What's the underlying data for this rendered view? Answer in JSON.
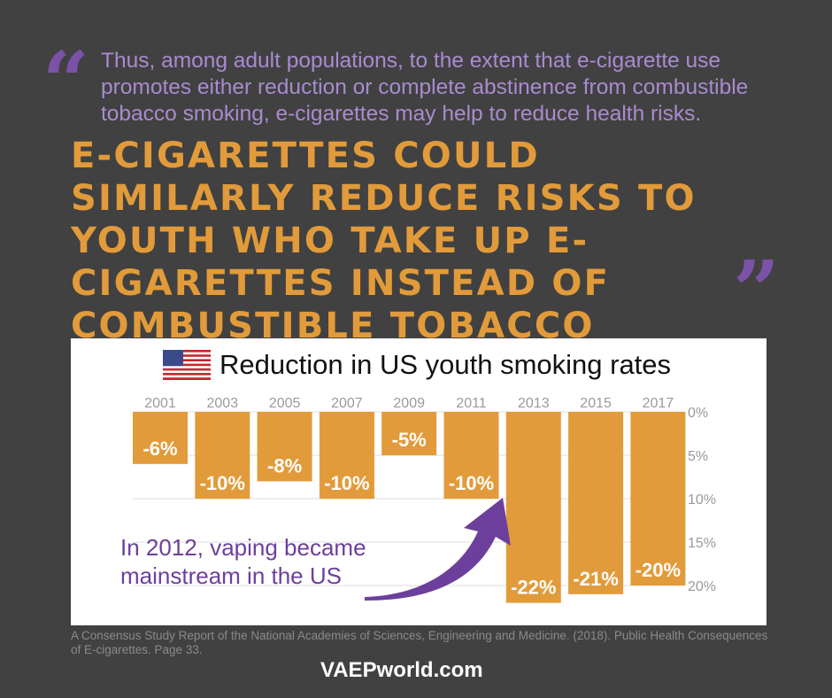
{
  "quote": {
    "open_mark": "“",
    "close_mark": "”",
    "intro": "Thus, among adult populations, to the extent that e-cigarette use promotes either reduction or complete abstinence from combustible tobacco smoking, e-cigarettes may help to reduce health risks.",
    "headline": "E-cigarettes could similarly reduce risks to youth who take up e-cigarettes instead of combustible tobacco cigarettes."
  },
  "chart_data": {
    "type": "bar",
    "title": "Reduction in US youth smoking rates",
    "categories": [
      "2001",
      "2003",
      "2005",
      "2007",
      "2009",
      "2011",
      "2013",
      "2015",
      "2017"
    ],
    "values": [
      -6,
      -10,
      -8,
      -10,
      -5,
      -10,
      -22,
      -21,
      -20
    ],
    "value_labels": [
      "-6%",
      "-10%",
      "-8%",
      "-10%",
      "-5%",
      "-10%",
      "-22%",
      "-21%",
      "-20%"
    ],
    "y_ticks": [
      "0%",
      "5%",
      "10%",
      "15%",
      "20%"
    ],
    "ylim": [
      0,
      20
    ],
    "grid": true,
    "bar_color": "#e29b3a",
    "annotation": "In 2012, vaping became mainstream in the US",
    "annotation_color": "#6c3f9c"
  },
  "source": "A Consensus Study Report of the National Academies of Sciences, Engineering and Medicine. (2018). Public Health Consequences of E-cigarettes. Page 33.",
  "brand": "VAEPworld.com",
  "colors": {
    "background": "#414141",
    "purple": "#7b52a8",
    "orange": "#e29b3a"
  }
}
